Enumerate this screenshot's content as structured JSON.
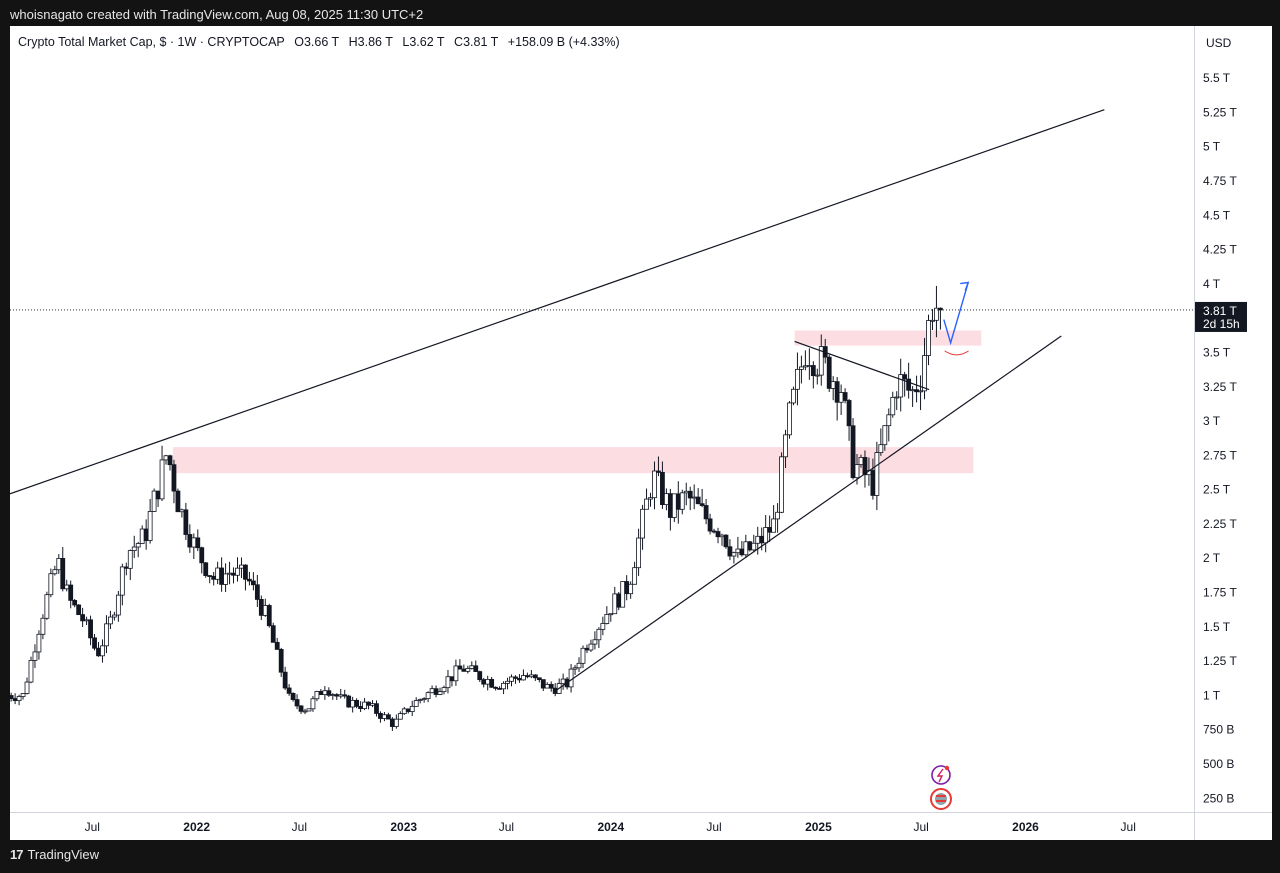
{
  "header": {
    "attribution": "whoisnagato created with TradingView.com, Aug 08, 2025 11:30 UTC+2"
  },
  "legend": {
    "symbol": "Crypto Total Market Cap, $ · 1W · CRYPTOCAP",
    "open": "O3.66 T",
    "high": "H3.86 T",
    "low": "L3.62 T",
    "close": "C3.81 T",
    "change": "+158.09 B (+4.33%)"
  },
  "footer": {
    "brand": "TradingView",
    "logo_glyph": "17"
  },
  "price_scale": {
    "currency": "USD",
    "ticks": [
      "5.5 T",
      "5.25 T",
      "5 T",
      "4.75 T",
      "4.5 T",
      "4.25 T",
      "4 T",
      "3.5 T",
      "3.25 T",
      "3 T",
      "2.75 T",
      "2.5 T",
      "2.25 T",
      "2 T",
      "1.75 T",
      "1.5 T",
      "1.25 T",
      "1 T",
      "750 B",
      "500 B",
      "250 B"
    ],
    "tick_values": [
      5.5,
      5.25,
      5,
      4.75,
      4.5,
      4.25,
      4,
      3.5,
      3.25,
      3,
      2.75,
      2.5,
      2.25,
      2,
      1.75,
      1.5,
      1.25,
      1,
      0.75,
      0.5,
      0.25
    ],
    "current_price_label": "3.81 T",
    "countdown_label": "2d 15h"
  },
  "time_scale": {
    "labels": [
      "Jul",
      "2022",
      "Jul",
      "2023",
      "Jul",
      "2024",
      "Jul",
      "2025",
      "Jul",
      "2026",
      "Jul"
    ],
    "label_dates": [
      "2021-07-01",
      "2022-01-01",
      "2022-07-01",
      "2023-01-01",
      "2023-07-01",
      "2024-01-01",
      "2024-07-01",
      "2025-01-01",
      "2025-07-01",
      "2026-01-01",
      "2026-07-01"
    ],
    "bold": [
      false,
      true,
      false,
      true,
      false,
      true,
      false,
      true,
      false,
      true,
      false
    ]
  },
  "chart_data": {
    "type": "candlestick",
    "interval": "1W",
    "y_unit": "T USD",
    "y_range": [
      0.15,
      5.88
    ],
    "x_range": [
      "2021-02-06",
      "2026-10-25"
    ],
    "current_price": 3.81,
    "close_series": [
      [
        "2021-03-01",
        1.0
      ],
      [
        "2021-04-01",
        1.55
      ],
      [
        "2021-05-01",
        1.98
      ],
      [
        "2021-05-20",
        1.7
      ],
      [
        "2021-06-15",
        1.55
      ],
      [
        "2021-07-10",
        1.3
      ],
      [
        "2021-08-01",
        1.52
      ],
      [
        "2021-09-01",
        2.05
      ],
      [
        "2021-10-01",
        2.15
      ],
      [
        "2021-11-10",
        2.78
      ],
      [
        "2021-12-01",
        2.38
      ],
      [
        "2022-01-01",
        2.05
      ],
      [
        "2022-02-01",
        1.85
      ],
      [
        "2022-03-01",
        1.9
      ],
      [
        "2022-04-01",
        1.85
      ],
      [
        "2022-05-01",
        1.6
      ],
      [
        "2022-06-15",
        0.95
      ],
      [
        "2022-07-15",
        0.9
      ],
      [
        "2022-08-15",
        1.07
      ],
      [
        "2022-09-15",
        0.96
      ],
      [
        "2022-11-01",
        0.92
      ],
      [
        "2022-12-15",
        0.79
      ],
      [
        "2023-01-15",
        0.93
      ],
      [
        "2023-03-01",
        1.06
      ],
      [
        "2023-04-15",
        1.2
      ],
      [
        "2023-06-15",
        1.08
      ],
      [
        "2023-08-01",
        1.15
      ],
      [
        "2023-09-15",
        1.05
      ],
      [
        "2023-10-15",
        1.08
      ],
      [
        "2023-11-15",
        1.35
      ],
      [
        "2024-01-01",
        1.65
      ],
      [
        "2024-02-01",
        1.8
      ],
      [
        "2024-03-15",
        2.6
      ],
      [
        "2024-04-15",
        2.35
      ],
      [
        "2024-05-15",
        2.45
      ],
      [
        "2024-06-15",
        2.3
      ],
      [
        "2024-07-15",
        2.2
      ],
      [
        "2024-08-10",
        2.0
      ],
      [
        "2024-09-15",
        2.1
      ],
      [
        "2024-10-15",
        2.25
      ],
      [
        "2024-11-10",
        3.0
      ],
      [
        "2024-12-10",
        3.55
      ],
      [
        "2025-01-10",
        3.4
      ],
      [
        "2025-02-10",
        3.25
      ],
      [
        "2025-03-01",
        2.7
      ],
      [
        "2025-04-07",
        2.55
      ],
      [
        "2025-05-01",
        2.95
      ],
      [
        "2025-05-20",
        3.3
      ],
      [
        "2025-06-15",
        3.2
      ],
      [
        "2025-07-01",
        3.35
      ],
      [
        "2025-07-20",
        3.85
      ],
      [
        "2025-08-08",
        3.81
      ]
    ],
    "trendlines": [
      {
        "x": [
          "2021-02-06",
          "2026-05-20"
        ],
        "y": [
          2.47,
          5.27
        ]
      },
      {
        "x": [
          "2023-09-28",
          "2026-03-05"
        ],
        "y": [
          1.04,
          3.62
        ]
      },
      {
        "x": [
          "2024-11-20",
          "2025-07-15"
        ],
        "y": [
          3.58,
          3.23
        ]
      }
    ],
    "zones": [
      {
        "x": [
          "2021-11-20",
          "2025-10-01"
        ],
        "y": [
          2.62,
          2.81
        ],
        "color": "#fcdde2"
      },
      {
        "x": [
          "2024-11-20",
          "2025-10-15"
        ],
        "y": [
          3.55,
          3.66
        ],
        "color": "#fcdde2"
      }
    ],
    "projection": {
      "x": [
        "2025-08-10",
        "2025-08-22",
        "2025-09-22"
      ],
      "y": [
        3.74,
        3.57,
        4.01
      ],
      "color": "#2962ff"
    }
  }
}
